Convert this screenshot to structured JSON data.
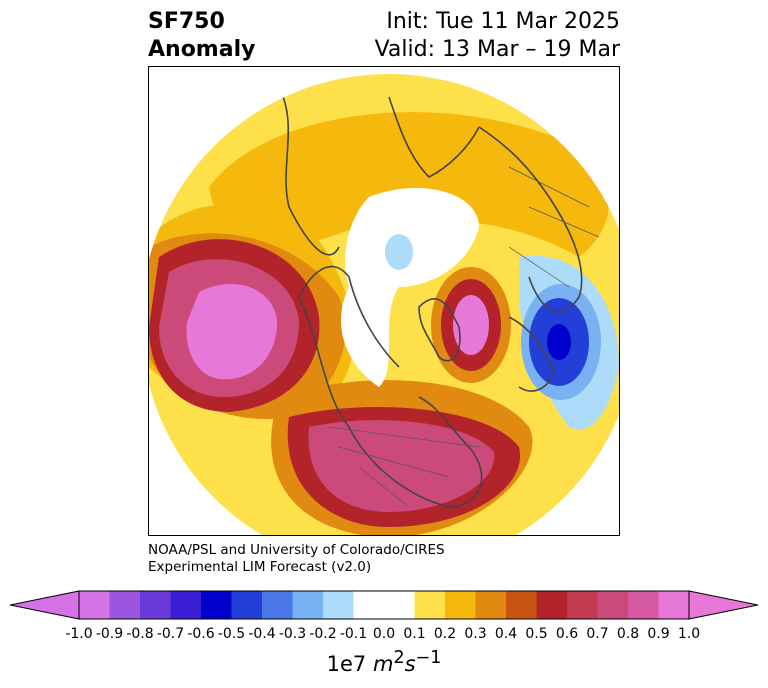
{
  "header": {
    "title_line1": "SF750",
    "title_line2": "Anomaly",
    "init_label": "Init: Tue 11 Mar 2025",
    "valid_label": "Valid: 13 Mar – 19 Mar"
  },
  "credit": {
    "line1": "NOAA/PSL and University of Colorado/CIRES",
    "line2": "Experimental LIM Forecast (v2.0)"
  },
  "colorbar": {
    "ticks": [
      "-1.0",
      "-0.9",
      "-0.8",
      "-0.7",
      "-0.6",
      "-0.5",
      "-0.4",
      "-0.3",
      "-0.2",
      "-0.1",
      "0.0",
      "0.1",
      "0.2",
      "0.3",
      "0.4",
      "0.5",
      "0.6",
      "0.7",
      "0.8",
      "0.9",
      "1.0"
    ],
    "unit_prefix": "1e7 ",
    "unit_math": "m",
    "unit_sup1": "2",
    "unit_s": "s",
    "unit_sup2": "−1",
    "colors": [
      "#d472e6",
      "#9c55e0",
      "#6a3bd8",
      "#3a1fd6",
      "#0000cc",
      "#2240d8",
      "#4a78e8",
      "#78b2f2",
      "#acdcf9",
      "#ffffff",
      "#ffffff",
      "#fde04a",
      "#f4b90c",
      "#e08a12",
      "#c85412",
      "#b2242a",
      "#c23a50",
      "#cc4a7a",
      "#d65aa2",
      "#e878d8"
    ]
  }
}
